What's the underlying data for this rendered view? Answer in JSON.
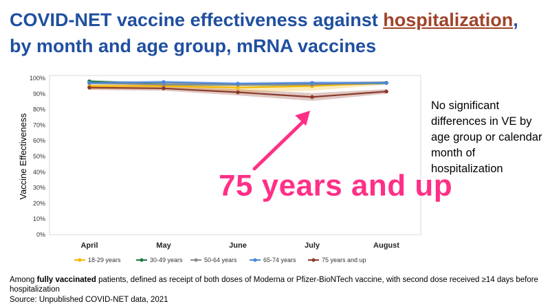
{
  "title": {
    "line1_prefix": "COVID-NET vaccine effectiveness against ",
    "line1_highlight": "hospitalization",
    "line1_suffix": ",",
    "line2": "by month and age group, mRNA vaccines"
  },
  "side_note": "No significant differences in VE by age group or calendar month of hospitalization",
  "callout": "75 years and up",
  "footnote": {
    "prefix": "Among ",
    "bold": "fully vaccinated",
    "suffix": " patients, defined as receipt of both doses of Moderna or Pfizer-BioNTech vaccine, with second dose received ≥14 days before hospitalization"
  },
  "source": "Source: Unpublished COVID-NET data, 2021",
  "chart_data": {
    "type": "line",
    "title": "",
    "xlabel": "",
    "ylabel": "Vaccine Effectiveness",
    "categories": [
      "April",
      "May",
      "June",
      "July",
      "August"
    ],
    "ylim": [
      0,
      100
    ],
    "yticks": [
      "0%",
      "10%",
      "20%",
      "30%",
      "40%",
      "50%",
      "60%",
      "70%",
      "80%",
      "90%",
      "100%"
    ],
    "grid": false,
    "legend_position": "bottom",
    "series": [
      {
        "name": "18-29 years",
        "color": "#f5b800",
        "values": [
          95,
          95,
          94,
          95,
          97
        ],
        "ci_low": [
          93,
          93,
          91,
          92,
          96
        ],
        "ci_high": [
          97,
          97,
          96,
          97,
          98
        ]
      },
      {
        "name": "30-49 years",
        "color": "#1e7a3e",
        "values": [
          98,
          96,
          96,
          96,
          97
        ],
        "ci_low": [
          97,
          95,
          95,
          95,
          96
        ],
        "ci_high": [
          99,
          97,
          97,
          97,
          98
        ]
      },
      {
        "name": "50-64 years",
        "color": "#8c8c8c",
        "values": [
          97,
          96,
          96,
          96,
          97
        ],
        "ci_low": [
          96,
          95,
          95,
          95,
          96
        ],
        "ci_high": [
          98,
          97,
          97,
          97,
          98
        ]
      },
      {
        "name": "65-74 years",
        "color": "#4a86d8",
        "values": [
          97,
          97.5,
          96.5,
          97,
          97
        ],
        "ci_low": [
          96,
          96.5,
          95.5,
          96,
          96
        ],
        "ci_high": [
          98,
          98.5,
          97.5,
          98,
          98
        ]
      },
      {
        "name": "75 years and up",
        "color": "#8b3a2a",
        "values": [
          94,
          93.5,
          91,
          88,
          91.5
        ],
        "ci_low": [
          92.5,
          92,
          89,
          85.5,
          90
        ],
        "ci_high": [
          95.5,
          95,
          93,
          90.5,
          93
        ]
      }
    ],
    "arrow_target": {
      "category": "July",
      "value": 88
    }
  }
}
